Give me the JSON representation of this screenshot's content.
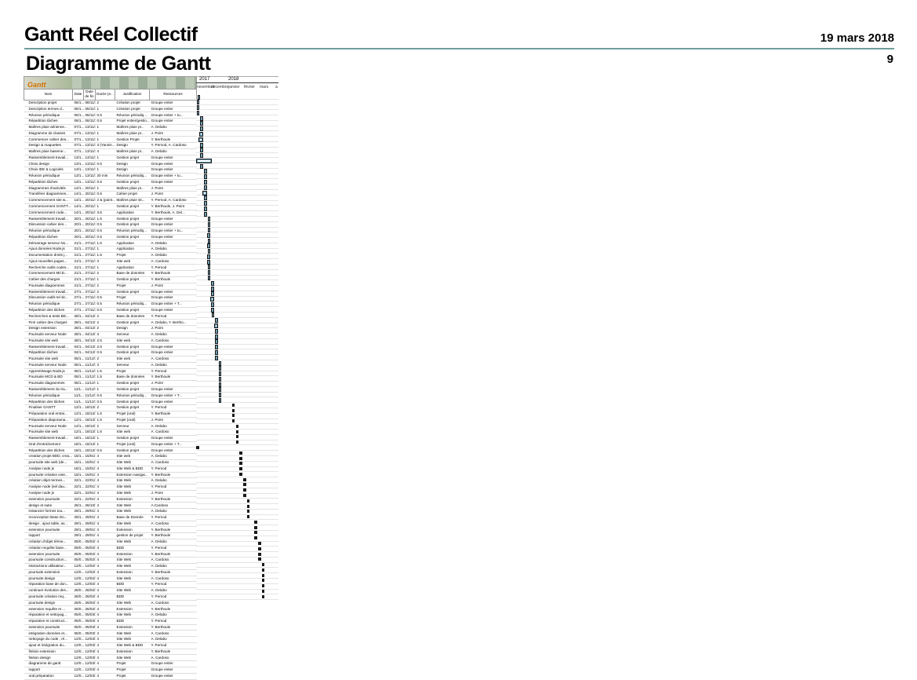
{
  "header": {
    "title": "Gantt Réel Collectif",
    "date": "19 mars 2018",
    "subtitle": "Diagramme de Gantt",
    "page": "9"
  },
  "gantt": {
    "logo": "Gantt",
    "years": [
      "2017",
      "2018"
    ],
    "months": [
      "novembre",
      "décembre",
      "janvier",
      "février",
      "mars",
      "a"
    ],
    "columns": [
      "Nom",
      "Date",
      "Date de fin",
      "Durée (e...",
      "Justification",
      "Ressources"
    ],
    "rows": [
      [
        "Description projet",
        "06/1...",
        "08/11/17",
        "2",
        "Création projet",
        "Groupe entier"
      ],
      [
        "Description termes d...",
        "06/1...",
        "06/11/17",
        "1",
        "Création projet",
        "Groupe entier"
      ],
      [
        "Réunion périodique",
        "06/1...",
        "06/11/17",
        "0.5",
        "Réunion périodiq...",
        "Groupe entier + tu..."
      ],
      [
        "Répartition tâches",
        "06/1...",
        "06/11/17",
        "0.5",
        "Projet entier/gestio...",
        "Groupe entier"
      ],
      [
        "Maîtres pluie aérienne...",
        "07/1...",
        "13/11/17",
        "1",
        "Maîtres pluie pr...",
        "A. Delabo"
      ],
      [
        "Diagramme de classes",
        "07/1...",
        "13/11/17",
        "1",
        "Maîtres pluie pr...",
        "J. Point"
      ],
      [
        "Commencer cahier des...",
        "07/1...",
        "13/11/17",
        "1",
        "Gestion Projet",
        "Y. Berthoule"
      ],
      [
        "Design & maquettes",
        "07/1...",
        "13/11/17",
        "3 (Yannis...",
        "Design",
        "Y. Pernod, A. Cardoso"
      ],
      [
        "Maîtres pluie baseme...",
        "07/1...",
        "13/11/17",
        "4",
        "Maîtres pluie pr...",
        "A. Delabo"
      ],
      [
        "Rassemblement travail...",
        "13/1...",
        "13/11/17",
        "1",
        "Gestion projet",
        "Groupe entier"
      ],
      [
        "Choix design",
        "13/1...",
        "13/11/17",
        "0.5",
        "Design",
        "Groupe entier"
      ],
      [
        "Choix IDE & Logiciels",
        "13/1...",
        "13/11/17",
        "1",
        "Design",
        "Groupe entier"
      ],
      [
        "Réunion périodique",
        "13/1...",
        "13/11/17",
        "20 min",
        "Réunion périodiq...",
        "Groupe entier + tu..."
      ],
      [
        "Répartition tâches",
        "13/1...",
        "13/11/17",
        "0.5",
        "Gestion projet",
        "Groupe entier"
      ],
      [
        "Diagrammes d'activités",
        "14/1...",
        "20/11/17",
        "1",
        "Maîtres pluie pr...",
        "J. Point"
      ],
      [
        "Transférer diagrammes...",
        "14/1...",
        "20/11/17",
        "0.5",
        "Cahier projet",
        "J. Point"
      ],
      [
        "Commencement site w...",
        "14/1...",
        "20/11/17",
        "2 & (point...",
        "Maîtres pluie sit...",
        "Y. Pernod, A. Cardoso"
      ],
      [
        "Commencement GANTT...",
        "14/1...",
        "20/11/17",
        "1",
        "Gestion projet",
        "Y. Berthoule, J. Point"
      ],
      [
        "Commencement code...",
        "14/1...",
        "20/11/17",
        "3.5",
        "Application",
        "Y. Berthoule, A. Del..."
      ],
      [
        "Rassemblement travail...",
        "20/1...",
        "20/11/17",
        "1.5",
        "Gestion projet",
        "Groupe entier"
      ],
      [
        "Discussion cahier des...",
        "20/1...",
        "20/11/17",
        "0.5",
        "Gestion projet",
        "Groupe entier"
      ],
      [
        "Réunion périodique",
        "20/1...",
        "20/11/17",
        "0.5",
        "Réunion périodiq...",
        "Groupe entier + tu..."
      ],
      [
        "Répartition tâches",
        "20/1...",
        "20/11/17",
        "0.5",
        "Gestion projet",
        "Groupe entier"
      ],
      [
        "Démarrage serveur No...",
        "21/1...",
        "27/11/17",
        "1.5",
        "Application",
        "A. Delabo"
      ],
      [
        "Ajout données Node.js",
        "21/1...",
        "27/11/17",
        "1",
        "Application",
        "A. Delabo"
      ],
      [
        "Documentation droits j...",
        "21/1...",
        "27/11/17",
        "1.5",
        "Projet",
        "A. Delabo"
      ],
      [
        "Ajout nouvelles pages...",
        "21/1...",
        "27/11/17",
        "3",
        "Site web",
        "A. Cardoso"
      ],
      [
        "Recherche outils codes...",
        "21/1...",
        "27/11/17",
        "1",
        "Application",
        "Y. Pernod"
      ],
      [
        "Commencement MCD...",
        "21/1...",
        "27/11/17",
        "2",
        "Base de données",
        "Y. Berthoule"
      ],
      [
        "Cahier des charges",
        "21/1...",
        "27/11/17",
        "1",
        "Gestion projet",
        "Y. Berthoule"
      ],
      [
        "Poursuite diagrammes",
        "21/1...",
        "27/11/17",
        "2",
        "Projet",
        "J. Point"
      ],
      [
        "Rassemblement travail...",
        "27/1...",
        "27/11/17",
        "2",
        "Gestion projet",
        "Groupe entier"
      ],
      [
        "Discussion outils tel sit...",
        "27/1...",
        "27/11/17",
        "0.5",
        "Projet",
        "Groupe entier"
      ],
      [
        "Réunion périodique",
        "27/1...",
        "27/11/17",
        "0.5",
        "Réunion périodiq...",
        "Groupe entier + T..."
      ],
      [
        "Répartition des tâches",
        "27/1...",
        "27/11/17",
        "0.5",
        "Gestion projet",
        "Groupe entier"
      ],
      [
        "Recherches & tests BD...",
        "28/1...",
        "04/12/17",
        "2",
        "Base de données",
        "Y. Pernod"
      ],
      [
        "Finir cahier des charges",
        "28/1...",
        "04/12/17",
        "2",
        "Gestion projet",
        "A. Delabo, Y. Bertho..."
      ],
      [
        "Design extension",
        "28/1...",
        "04/12/17",
        "2",
        "Design",
        "J. Point"
      ],
      [
        "Poursuite serveur Node",
        "28/1...",
        "04/12/17",
        "3",
        "Serveur",
        "A. Delabo"
      ],
      [
        "Poursuite site web",
        "28/1...",
        "04/12/17",
        "2.5",
        "Site web",
        "A. Cardoso"
      ],
      [
        "Rassemblement travail...",
        "04/1...",
        "04/12/17",
        "2.5",
        "Gestion projet",
        "Groupe entier"
      ],
      [
        "Répartition tâches",
        "04/1...",
        "04/12/17",
        "0.5",
        "Gestion projet",
        "Groupe entier"
      ],
      [
        "Poursuite site web",
        "05/1...",
        "11/12/17",
        "2",
        "Site web",
        "A. Cardoso"
      ],
      [
        "Poursuite serveur Node",
        "05/1...",
        "11/12/17",
        "3",
        "Serveur",
        "A. Delabo"
      ],
      [
        "Apprentissage Node.js",
        "05/1...",
        "11/12/17",
        "1.5",
        "Projet",
        "Y. Pernod"
      ],
      [
        "Poursuite MCD & BD",
        "05/1...",
        "11/12/17",
        "1.5",
        "Base de données",
        "Y. Berthoule"
      ],
      [
        "Poursuite diagrammes",
        "05/1...",
        "11/12/17",
        "1",
        "Gestion projet",
        "J. Point"
      ],
      [
        "Rassemblement du tra...",
        "11/1...",
        "11/12/17",
        "1",
        "Gestion projet",
        "Groupe entier"
      ],
      [
        "Réunion périodique",
        "11/1...",
        "11/12/17",
        "0.5",
        "Réunion périodiq...",
        "Groupe entier + T..."
      ],
      [
        "Répartition des tâches",
        "11/1...",
        "11/12/17",
        "0.5",
        "Gestion projet",
        "Groupe entier"
      ],
      [
        "Finaliser GANTT",
        "12/1...",
        "18/12/17",
        "2",
        "Gestion projet",
        "Y. Pernod"
      ],
      [
        "Préparation oral entrai...",
        "12/1...",
        "18/12/17",
        "1.5",
        "Projet (oral)",
        "Y. Berthoule"
      ],
      [
        "Préparation diaporama...",
        "12/1...",
        "18/12/17",
        "1.5",
        "Projet (oral)",
        "J. Point"
      ],
      [
        "Poursuite serveur Node",
        "12/1...",
        "18/12/17",
        "2",
        "Serveur",
        "A. Delabo"
      ],
      [
        "Poursuite site web",
        "12/1...",
        "18/12/17",
        "1.5",
        "Site web",
        "A. Cardoso"
      ],
      [
        "Rassemblement travail...",
        "18/1...",
        "18/12/17",
        "1",
        "Gestion projet",
        "Groupe entier"
      ],
      [
        "Oral d'entraînement",
        "18/1...",
        "18/12/17",
        "1",
        "Projet (oral)",
        "Groupe entier + T..."
      ],
      [
        "Répartition des tâches",
        "18/1...",
        "18/12/17",
        "0.5",
        "Gestion projet",
        "Groupe entier"
      ],
      [
        "creation projet BDD, crea...",
        "15/1...",
        "15/01/18",
        "4",
        "Site web",
        "A. Delabo"
      ],
      [
        "poursuite site web (de...",
        "15/1...",
        "15/01/18",
        "4",
        "Site Web",
        "A. Cardoso"
      ],
      [
        "Analyse node js",
        "15/1...",
        "15/01/18",
        "4",
        "Site Web & BDD",
        "Y. Pernod"
      ],
      [
        "poursuite création exte...",
        "15/1...",
        "15/01/18",
        "4",
        "Extension navigat...",
        "Y. Berthoule"
      ],
      [
        "création objet termes...",
        "22/1...",
        "22/01/18",
        "4",
        "Site Web",
        "A. Delabo"
      ],
      [
        "Analyse node (sel dau...",
        "22/1...",
        "22/01/18",
        "4",
        "Site Web",
        "Y. Pernod"
      ],
      [
        "Analyse node js",
        "22/1...",
        "22/01/18",
        "4",
        "Site Web",
        "J. Point"
      ],
      [
        "extension poursuite",
        "22/1...",
        "22/01/18",
        "4",
        "Extension",
        "Y. Berthoule"
      ],
      [
        "design et suite",
        "26/1...",
        "26/10/17",
        "4",
        "Site Web",
        "A.Cardoso"
      ],
      [
        "instancier formes tou...",
        "29/1...",
        "29/01/18",
        "4",
        "Site Web",
        "A. Delabo"
      ],
      [
        "reconception Base Do...",
        "29/1...",
        "29/01/18",
        "4",
        "Base de Donnée",
        "Y. Pernod"
      ],
      [
        "design , ajout table, av...",
        "29/1...",
        "29/01/18",
        "4",
        "Site Web",
        "A. Cardoso"
      ],
      [
        "extension poursuite",
        "29/1...",
        "29/01/18",
        "4",
        "Extension",
        "Y. Berthoule"
      ],
      [
        "rapport",
        "29/1...",
        "29/01/18",
        "4",
        "gestion de projet",
        "Y. Berthoule"
      ],
      [
        "création d'objet tèrme...",
        "05/0...",
        "05/02/18",
        "4",
        "Site Web",
        "A. Delabo"
      ],
      [
        "création requête base...",
        "05/0...",
        "05/02/18",
        "4",
        "BDD",
        "Y. Pernod"
      ],
      [
        "extension poursuite",
        "05/0...",
        "05/02/18",
        "4",
        "Extension",
        "Y. Berthoule"
      ],
      [
        "poursuite construction...",
        "05/0...",
        "05/02/18",
        "4",
        "Site Web",
        "A. Cardoso"
      ],
      [
        "interactions utilisateur...",
        "12/0...",
        "12/02/18",
        "4",
        "Site Web",
        "A. Delabo"
      ],
      [
        "poursuite extension",
        "12/0...",
        "12/02/18",
        "4",
        "Extension",
        "Y. Berthoule"
      ],
      [
        "poursuite design",
        "12/0...",
        "12/02/18",
        "4",
        "Site Web",
        "A. Cardoso"
      ],
      [
        "réparation base de don...",
        "12/0...",
        "12/02/18",
        "4",
        "BDD",
        "Y. Pernod"
      ],
      [
        "continuer évolution des...",
        "26/0...",
        "26/02/18",
        "4",
        "Site Web",
        "A. Delabo"
      ],
      [
        "poursuite création req...",
        "26/0...",
        "26/02/18",
        "4",
        "BDD",
        "Y. Pernod"
      ],
      [
        "poursuite design",
        "26/0...",
        "26/02/18",
        "4",
        "Site Web",
        "A. Cardoso"
      ],
      [
        "extension requête et ...",
        "26/0...",
        "26/02/18",
        "4",
        "Extension",
        "Y. Berthoule"
      ],
      [
        "réparation et nettoyag...",
        "05/0...",
        "05/03/18",
        "4",
        "Site Web",
        "A. Delabo"
      ],
      [
        "réparation et construct...",
        "05/0...",
        "05/03/18",
        "4",
        "BDD",
        "Y. Pernod"
      ],
      [
        "extension poursuite",
        "05/0...",
        "05/03/18",
        "4",
        "Extension",
        "Y. Berthoule"
      ],
      [
        "intégration données et...",
        "05/0...",
        "05/03/18",
        "4",
        "Site Web",
        "A. Cardoso"
      ],
      [
        "nettoyage du code , ré...",
        "12/0...",
        "12/03/18",
        "4",
        "Site Web",
        "A. Delabo"
      ],
      [
        "ajout et intégration du...",
        "12/0...",
        "12/03/18",
        "4",
        "Site Web & BDD",
        "Y. Pernod"
      ],
      [
        "finition extension",
        "12/0...",
        "12/03/18",
        "4",
        "Extension",
        "Y. Berthoule"
      ],
      [
        "finition design",
        "12/0...",
        "12/03/18",
        "4",
        "Site Web",
        "A. Cardoso"
      ],
      [
        "diagramme de gantt",
        "12/0...",
        "12/03/18",
        "4",
        "Projet",
        "Groupe entier"
      ],
      [
        "rapport",
        "12/0...",
        "12/03/18",
        "4",
        "Projet",
        "Groupe entier"
      ],
      [
        "oral préparation",
        "12/0...",
        "12/03/18",
        "4",
        "Projet",
        "Groupe entier"
      ]
    ]
  }
}
